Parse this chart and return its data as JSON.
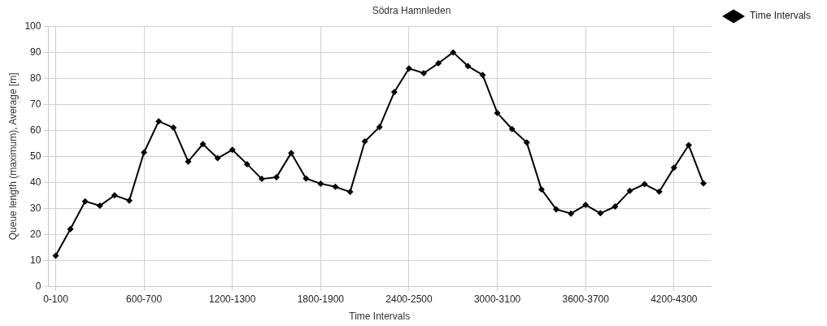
{
  "chart_data": {
    "type": "line",
    "title": "Södra Hamnleden",
    "xlabel": "Time Intervals",
    "ylabel": "Queue length (maximum), Average [m]",
    "categories": [
      "0-100",
      null,
      null,
      null,
      null,
      null,
      "600-700",
      null,
      null,
      null,
      null,
      null,
      "1200-1300",
      null,
      null,
      null,
      null,
      null,
      "1800-1900",
      null,
      null,
      null,
      null,
      null,
      "2400-2500",
      null,
      null,
      null,
      null,
      null,
      "3000-3100",
      null,
      null,
      null,
      null,
      null,
      "3600-3700",
      null,
      null,
      null,
      null,
      null,
      "4200-4300",
      null,
      null
    ],
    "series": [
      {
        "name": "Time Intervals",
        "color": "#000000",
        "values": [
          11.8,
          22,
          32.7,
          31,
          35,
          33,
          51.5,
          63.5,
          61,
          48,
          54.7,
          49.3,
          52.5,
          47,
          41.3,
          42,
          51.3,
          41.5,
          39.5,
          38.3,
          36.3,
          55.7,
          61.3,
          74.7,
          83.8,
          82,
          85.8,
          90,
          84.7,
          81.3,
          66.7,
          60.5,
          55.3,
          37.3,
          29.6,
          28,
          31.3,
          28.1,
          30.7,
          36.7,
          39.3,
          36.4,
          45.6,
          54.3,
          39.6
        ]
      }
    ],
    "ylim": [
      0,
      100
    ],
    "yticks": [
      0,
      10,
      20,
      30,
      40,
      50,
      60,
      70,
      80,
      90,
      100
    ],
    "grid": true,
    "legend": "top right",
    "marker": "diamond",
    "line_style": "solid"
  }
}
